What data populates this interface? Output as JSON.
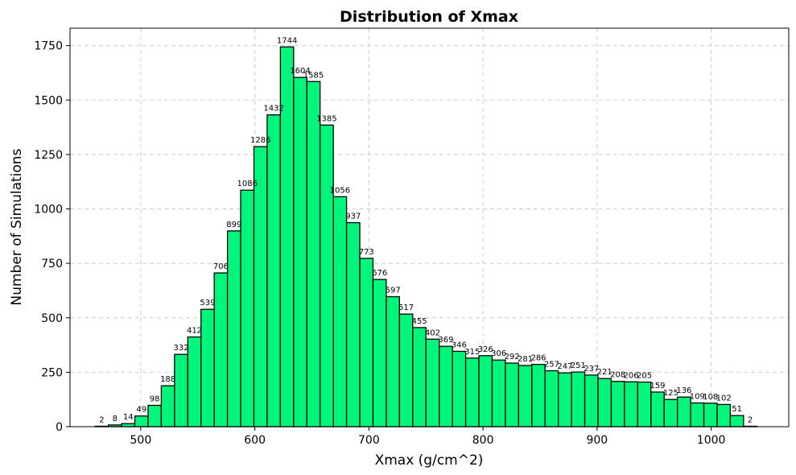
{
  "chart_data": {
    "type": "bar",
    "title": "Distribution of Xmax",
    "xlabel": "Xmax (g/cm^2)",
    "ylabel": "Number of Simulations",
    "bin_start": 460,
    "bin_width": 11.6,
    "values": [
      2,
      8,
      14,
      49,
      98,
      188,
      332,
      412,
      539,
      706,
      899,
      1086,
      1286,
      1432,
      1744,
      1604,
      1585,
      1385,
      1056,
      937,
      773,
      676,
      597,
      517,
      455,
      402,
      369,
      346,
      315,
      326,
      306,
      292,
      281,
      286,
      257,
      247,
      251,
      237,
      221,
      208,
      206,
      205,
      159,
      125,
      136,
      109,
      108,
      102,
      51,
      2
    ],
    "xlim": [
      438,
      1068
    ],
    "ylim": [
      0,
      1830
    ],
    "xticks": [
      500,
      600,
      700,
      800,
      900,
      1000
    ],
    "yticks": [
      0,
      250,
      500,
      750,
      1000,
      1250,
      1500,
      1750
    ],
    "bar_color": "#00f57a",
    "edge_color": "#000000",
    "grid": true
  }
}
